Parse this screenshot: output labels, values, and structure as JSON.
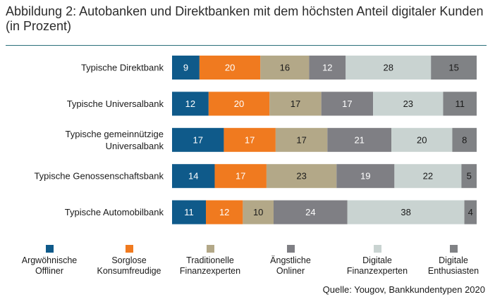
{
  "title": "Abbildung 2: Autobanken und Direktbanken mit dem höchsten Anteil digitaler Kunden (in Prozent)",
  "source": "Quelle: Yougov, Bankkundentypen 2020",
  "chart_data": {
    "type": "bar",
    "orientation": "horizontal",
    "stacked": true,
    "unit": "Prozent",
    "legend_position": "bottom",
    "grid": false,
    "categories": [
      [
        "Typische Direktbank"
      ],
      [
        "Typische Universalbank"
      ],
      [
        "Typische gemeinnützige",
        "Universalbank"
      ],
      [
        "Typische Genossenschaftsbank"
      ],
      [
        "Typische  Automobilbank"
      ]
    ],
    "series": [
      {
        "name": [
          "Argwöhnische",
          "Offliner"
        ],
        "color": "#0f5a8a",
        "text_color": "#ffffff",
        "values": [
          9,
          12,
          17,
          14,
          11
        ]
      },
      {
        "name": [
          "Sorglose",
          "Konsumfreudige"
        ],
        "color": "#f07a1f",
        "text_color": "#ffffff",
        "values": [
          20,
          20,
          17,
          17,
          12
        ]
      },
      {
        "name": [
          "Traditionelle",
          "Finanzexperten"
        ],
        "color": "#b3a888",
        "text_color": "#1a1a1a",
        "values": [
          16,
          17,
          17,
          23,
          10
        ]
      },
      {
        "name": [
          "Ängstliche",
          "Onliner"
        ],
        "color": "#7f7f84",
        "text_color": "#ffffff",
        "values": [
          12,
          17,
          21,
          19,
          24
        ]
      },
      {
        "name": [
          "Digitale",
          "Finanzexperten"
        ],
        "color": "#c9d3d1",
        "text_color": "#1a1a1a",
        "values": [
          28,
          23,
          20,
          22,
          38
        ]
      },
      {
        "name": [
          "Digitale",
          "Enthusiasten"
        ],
        "color": "#808285",
        "text_color": "#1a1a1a",
        "values": [
          15,
          11,
          8,
          5,
          4
        ]
      }
    ]
  }
}
